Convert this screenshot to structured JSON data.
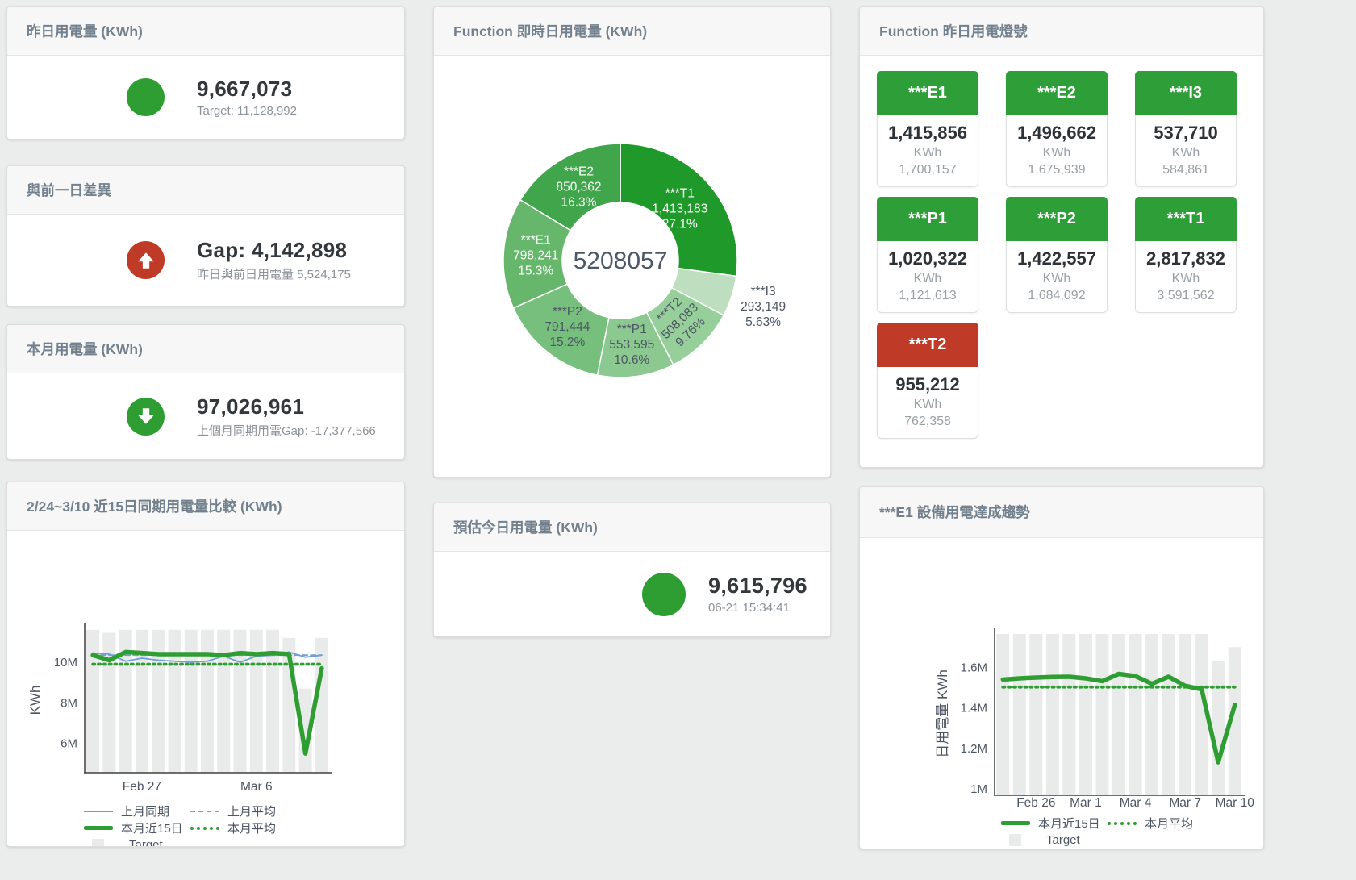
{
  "colors": {
    "green": "#2f9e32",
    "red": "#bf3b27",
    "blue": "#6f9fd8",
    "target_bar": "#e9eaea",
    "tile_green": "#2e9e38",
    "tile_red": "#bf3b28"
  },
  "cards": {
    "yesterday": {
      "title": "昨日用電量 (KWh)",
      "value": "9,667,073",
      "subtitle": "Target: 11,128,992"
    },
    "day_gap": {
      "title": "與前一日差異",
      "value": "Gap: 4,142,898",
      "subtitle": "昨日與前日用電量 5,524,175"
    },
    "month": {
      "title": "本月用電量 (KWh)",
      "value": "97,026,961",
      "subtitle": "上個月同期用電Gap: -17,377,566"
    },
    "compare15": {
      "title": "2/24~3/10 近15日同期用電量比較 (KWh)"
    },
    "realtime": {
      "title": "Function 即時日用電量 (KWh)"
    },
    "estimate": {
      "title": "預估今日用電量 (KWh)",
      "value": "9,615,796",
      "subtitle": "06-21 15:34:41"
    },
    "lights": {
      "title": "Function 昨日用電燈號"
    },
    "e1_trend": {
      "title": "***E1 設備用電達成趨勢"
    }
  },
  "lights_tiles": [
    {
      "label": "***E1",
      "value": "1,415,856",
      "unit": "KWh",
      "target": "1,700,157",
      "color": "#2e9e38"
    },
    {
      "label": "***E2",
      "value": "1,496,662",
      "unit": "KWh",
      "target": "1,675,939",
      "color": "#2e9e38"
    },
    {
      "label": "***I3",
      "value": "537,710",
      "unit": "KWh",
      "target": "584,861",
      "color": "#2e9e38"
    },
    {
      "label": "***P1",
      "value": "1,020,322",
      "unit": "KWh",
      "target": "1,121,613",
      "color": "#2e9e38"
    },
    {
      "label": "***P2",
      "value": "1,422,557",
      "unit": "KWh",
      "target": "1,684,092",
      "color": "#2e9e38"
    },
    {
      "label": "***T1",
      "value": "2,817,832",
      "unit": "KWh",
      "target": "3,591,562",
      "color": "#2e9e38"
    },
    {
      "label": "***T2",
      "value": "955,212",
      "unit": "KWh",
      "target": "762,358",
      "color": "#bf3b28"
    }
  ],
  "chart_data": [
    {
      "id": "realtime_donut",
      "type": "pie",
      "title": "Function 即時日用電量 (KWh)",
      "center_label": "5208057",
      "slices": [
        {
          "name": "***T1",
          "value": 1413183,
          "value_label": "1,413,183",
          "pct_label": "27.1%",
          "color": "#1f9929",
          "label_color": "#ffffff"
        },
        {
          "name": "***I3",
          "value": 293149,
          "value_label": "293,149",
          "pct_label": "5.63%",
          "color": "#bedfbf",
          "label_color": "#4d5663"
        },
        {
          "name": "***T2",
          "value": 508083,
          "value_label": "508,083",
          "pct_label": "9.76%",
          "color": "#97cf9b",
          "label_color": "#4d5663"
        },
        {
          "name": "***P1",
          "value": 553595,
          "value_label": "553,595",
          "pct_label": "10.6%",
          "color": "#8cc991",
          "label_color": "#4d5663"
        },
        {
          "name": "***P2",
          "value": 791444,
          "value_label": "791,444",
          "pct_label": "15.2%",
          "color": "#76bf7c",
          "label_color": "#4d5663"
        },
        {
          "name": "***E1",
          "value": 798241,
          "value_label": "798,241",
          "pct_label": "15.3%",
          "color": "#66b76c",
          "label_color": "#ffffff"
        },
        {
          "name": "***E2",
          "value": 850362,
          "value_label": "850,362",
          "pct_label": "16.3%",
          "color": "#41a54b",
          "label_color": "#ffffff"
        }
      ]
    },
    {
      "id": "compare15",
      "type": "line",
      "title": "2/24~3/10 近15日同期用電量比較 (KWh)",
      "ylabel": "KWh",
      "ylim": [
        4550000,
        11750000
      ],
      "yticks": [
        {
          "label": "6M",
          "value": 6000000
        },
        {
          "label": "8M",
          "value": 8000000
        },
        {
          "label": "10M",
          "value": 10000000
        }
      ],
      "categories": [
        "2/24",
        "2/25",
        "2/26",
        "2/27",
        "2/28",
        "3/1",
        "3/2",
        "3/3",
        "3/4",
        "3/5",
        "3/6",
        "3/7",
        "3/8",
        "3/9",
        "3/10"
      ],
      "xticks": [
        {
          "index": 3,
          "label": "Feb 27"
        },
        {
          "index": 10,
          "label": "Mar 6"
        }
      ],
      "series": [
        {
          "name": "上月同期",
          "style": "line-thin",
          "color": "#6f9fd8",
          "values": [
            10450000,
            10400000,
            10050000,
            10200000,
            10100000,
            10050000,
            10000000,
            10050000,
            10300000,
            10000000,
            10300000,
            10350000,
            10500000,
            10250000,
            10350000
          ]
        },
        {
          "name": "上月平均",
          "style": "line-dashed",
          "color": "#6f9fd8",
          "values": [
            10350000,
            10350000,
            10350000,
            10350000,
            10350000,
            10350000,
            10350000,
            10350000,
            10350000,
            10350000,
            10350000,
            10350000,
            10350000,
            10350000,
            10350000
          ]
        },
        {
          "name": "本月近15日",
          "style": "line-thick",
          "color": "#2f9e32",
          "values": [
            10350000,
            10100000,
            10500000,
            10450000,
            10400000,
            10400000,
            10400000,
            10400000,
            10350000,
            10450000,
            10400000,
            10450000,
            10400000,
            5500000,
            9700000
          ]
        },
        {
          "name": "本月平均",
          "style": "line-dotted",
          "color": "#2f9e32",
          "values": [
            9900000,
            9900000,
            9900000,
            9900000,
            9900000,
            9900000,
            9900000,
            9900000,
            9900000,
            9900000,
            9900000,
            9900000,
            9900000,
            9900000,
            9900000
          ]
        },
        {
          "name": "Target",
          "style": "bar",
          "color": "#e9eaea",
          "values": [
            11600000,
            11450000,
            11600000,
            11600000,
            11600000,
            11600000,
            11600000,
            11600000,
            11600000,
            11600000,
            11600000,
            11600000,
            11200000,
            8700000,
            11200000
          ]
        }
      ]
    },
    {
      "id": "e1_trend",
      "type": "line",
      "title": "***E1 設備用電達成趨勢",
      "ylabel": "日用電量 KWh",
      "ylim": [
        968000,
        1773000
      ],
      "yticks": [
        {
          "label": "1M",
          "value": 1000000
        },
        {
          "label": "1.2M",
          "value": 1200000
        },
        {
          "label": "1.4M",
          "value": 1400000
        },
        {
          "label": "1.6M",
          "value": 1600000
        }
      ],
      "categories": [
        "2/24",
        "2/25",
        "2/26",
        "2/27",
        "2/28",
        "3/1",
        "3/2",
        "3/3",
        "3/4",
        "3/5",
        "3/6",
        "3/7",
        "3/8",
        "3/9",
        "3/10"
      ],
      "xticks": [
        {
          "index": 2,
          "label": "Feb 26"
        },
        {
          "index": 5,
          "label": "Mar 1"
        },
        {
          "index": 8,
          "label": "Mar 4"
        },
        {
          "index": 11,
          "label": "Mar 7"
        },
        {
          "index": 14,
          "label": "Mar 10"
        }
      ],
      "series": [
        {
          "name": "本月近15日",
          "style": "line-thick",
          "color": "#2f9e32",
          "values": [
            1540000,
            1546000,
            1550000,
            1553000,
            1554000,
            1546000,
            1532000,
            1568000,
            1557000,
            1519000,
            1554000,
            1509000,
            1492000,
            1131000,
            1415000
          ]
        },
        {
          "name": "本月平均",
          "style": "line-dotted",
          "color": "#2f9e32",
          "values": [
            1503000,
            1503000,
            1503000,
            1503000,
            1503000,
            1503000,
            1503000,
            1503000,
            1503000,
            1503000,
            1503000,
            1503000,
            1503000,
            1503000,
            1503000
          ]
        },
        {
          "name": "Target",
          "style": "bar",
          "color": "#e9eaea",
          "values": [
            1765000,
            1765000,
            1765000,
            1765000,
            1765000,
            1765000,
            1765000,
            1765000,
            1765000,
            1765000,
            1765000,
            1765000,
            1765000,
            1630000,
            1700000
          ]
        }
      ]
    }
  ]
}
